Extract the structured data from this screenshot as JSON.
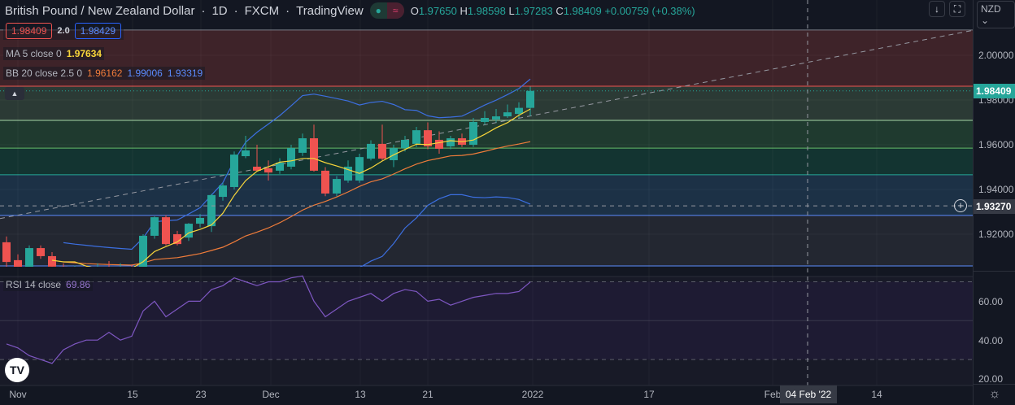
{
  "header": {
    "symbol": "British Pound / New Zealand Dollar",
    "interval": "1D",
    "exchange": "FXCM",
    "source": "TradingView",
    "separator": "·",
    "ohlc": {
      "o_label": "O",
      "o": "1.97650",
      "h_label": "H",
      "h": "1.98598",
      "l_label": "L",
      "l": "1.97283",
      "c_label": "C",
      "c": "1.98409",
      "change": "+0.00759 (+0.38%)"
    }
  },
  "trade": {
    "sell": "1.98409",
    "spread": "2.0",
    "buy": "1.98429"
  },
  "indicators": {
    "ma": {
      "label": "MA 5 close 0",
      "value": "1.97634"
    },
    "bb": {
      "label": "BB 20 close 2.5 0",
      "basis": "1.96162",
      "upper": "1.99006",
      "lower": "1.93319"
    },
    "rsi": {
      "label": "RSI 14 close",
      "value": "69.86"
    }
  },
  "price_scale": {
    "currency": "NZD",
    "labels": [
      "2.00000",
      "1.98000",
      "1.96000",
      "1.94000",
      "1.92000"
    ],
    "last_price": "1.98409",
    "crosshair_price": "1.93270",
    "rsi_labels": [
      "60.00",
      "40.00",
      "20.00"
    ]
  },
  "time_axis": {
    "labels": [
      "Nov",
      "15",
      "23",
      "Dec",
      "13",
      "21",
      "2022",
      "17",
      "Feb",
      "14"
    ],
    "crosshair_date": "04 Feb '22"
  },
  "colors": {
    "up": "#26a69a",
    "down": "#ef5350",
    "ma": "#f7d53a",
    "bb_basis": "#f07c3a",
    "bb_bands": "#3c6fe0",
    "rsi": "#7e57c2",
    "last_price": "#26a69a"
  },
  "icons": {
    "scroll": "arrow-down-icon",
    "fullscreen": "fullscreen-icon",
    "settings": "gear-icon",
    "logo": "tradingview-logo"
  },
  "chart_data": {
    "type": "candlestick",
    "price_range": [
      1.9012,
      2.0123
    ],
    "candles": [
      [
        1.9164,
        1.919,
        1.905,
        1.9076
      ],
      [
        1.9084,
        1.911,
        1.903,
        1.9047
      ],
      [
        1.9047,
        1.915,
        1.903,
        1.9138
      ],
      [
        1.9138,
        1.915,
        1.909,
        1.9102
      ],
      [
        1.9102,
        1.912,
        1.904,
        1.9055
      ],
      [
        1.9055,
        1.907,
        1.902,
        1.904
      ],
      [
        1.904,
        1.906,
        1.902,
        1.9048
      ],
      [
        1.9048,
        1.906,
        1.9025,
        1.9042
      ],
      [
        1.9042,
        1.907,
        1.903,
        1.905
      ],
      [
        1.905,
        1.908,
        1.903,
        1.9045
      ],
      [
        1.9045,
        1.907,
        1.903,
        1.9052
      ],
      [
        1.9052,
        1.9065,
        1.903,
        1.9047
      ],
      [
        1.9047,
        1.92,
        1.904,
        1.9193
      ],
      [
        1.9193,
        1.928,
        1.918,
        1.9276
      ],
      [
        1.9276,
        1.9285,
        1.915,
        1.9156
      ],
      [
        1.92,
        1.9215,
        1.915,
        1.9156
      ],
      [
        1.9185,
        1.925,
        1.917,
        1.9247
      ],
      [
        1.9247,
        1.929,
        1.923,
        1.9273
      ],
      [
        1.9236,
        1.938,
        1.921,
        1.9375
      ],
      [
        1.9367,
        1.943,
        1.935,
        1.9418
      ],
      [
        1.9411,
        1.957,
        1.94,
        1.9556
      ],
      [
        1.9549,
        1.964,
        1.954,
        1.9575
      ],
      [
        1.9502,
        1.96,
        1.948,
        1.9484
      ],
      [
        1.9495,
        1.953,
        1.944,
        1.9476
      ],
      [
        1.9484,
        1.954,
        1.947,
        1.952
      ],
      [
        1.9502,
        1.96,
        1.949,
        1.9585
      ],
      [
        1.9564,
        1.965,
        1.955,
        1.9629
      ],
      [
        1.9629,
        1.969,
        1.948,
        1.9484
      ],
      [
        1.9484,
        1.95,
        1.937,
        1.9382
      ],
      [
        1.9382,
        1.946,
        1.937,
        1.9447
      ],
      [
        1.944,
        1.953,
        1.943,
        1.9502
      ],
      [
        1.944,
        1.956,
        1.943,
        1.9545
      ],
      [
        1.9538,
        1.962,
        1.953,
        1.9604
      ],
      [
        1.9604,
        1.969,
        1.953,
        1.9538
      ],
      [
        1.9531,
        1.96,
        1.95,
        1.9585
      ],
      [
        1.9585,
        1.964,
        1.957,
        1.9622
      ],
      [
        1.9604,
        1.968,
        1.959,
        1.9665
      ],
      [
        1.9665,
        1.97,
        1.958,
        1.9593
      ],
      [
        1.9622,
        1.966,
        1.956,
        1.9582
      ],
      [
        1.9593,
        1.964,
        1.958,
        1.9629
      ],
      [
        1.9629,
        1.965,
        1.959,
        1.96
      ],
      [
        1.96,
        1.972,
        1.959,
        1.9702
      ],
      [
        1.9702,
        1.975,
        1.969,
        1.972
      ],
      [
        1.9713,
        1.976,
        1.97,
        1.9727
      ],
      [
        1.9727,
        1.978,
        1.972,
        1.9745
      ],
      [
        1.9738,
        1.979,
        1.972,
        1.9765
      ],
      [
        1.9765,
        1.986,
        1.9728,
        1.9841
      ]
    ],
    "rsi": [
      38,
      36,
      32,
      30,
      28,
      35,
      38,
      40,
      40,
      44,
      40,
      42,
      55,
      60,
      52,
      56,
      60,
      60,
      66,
      68,
      72,
      70,
      68,
      70,
      70,
      72,
      73,
      60,
      52,
      56,
      60,
      62,
      64,
      60,
      64,
      66,
      65,
      60,
      61,
      58,
      60,
      62,
      63,
      64,
      64,
      65,
      69.86
    ],
    "rsi_range": [
      16,
      76
    ],
    "fib_levels": [
      2.0113,
      1.9862,
      1.9709,
      1.9585,
      1.9466,
      1.9284,
      1.9058
    ],
    "trend_line": [
      [
        0,
        1.927
      ],
      [
        1194,
        2.011
      ]
    ]
  }
}
